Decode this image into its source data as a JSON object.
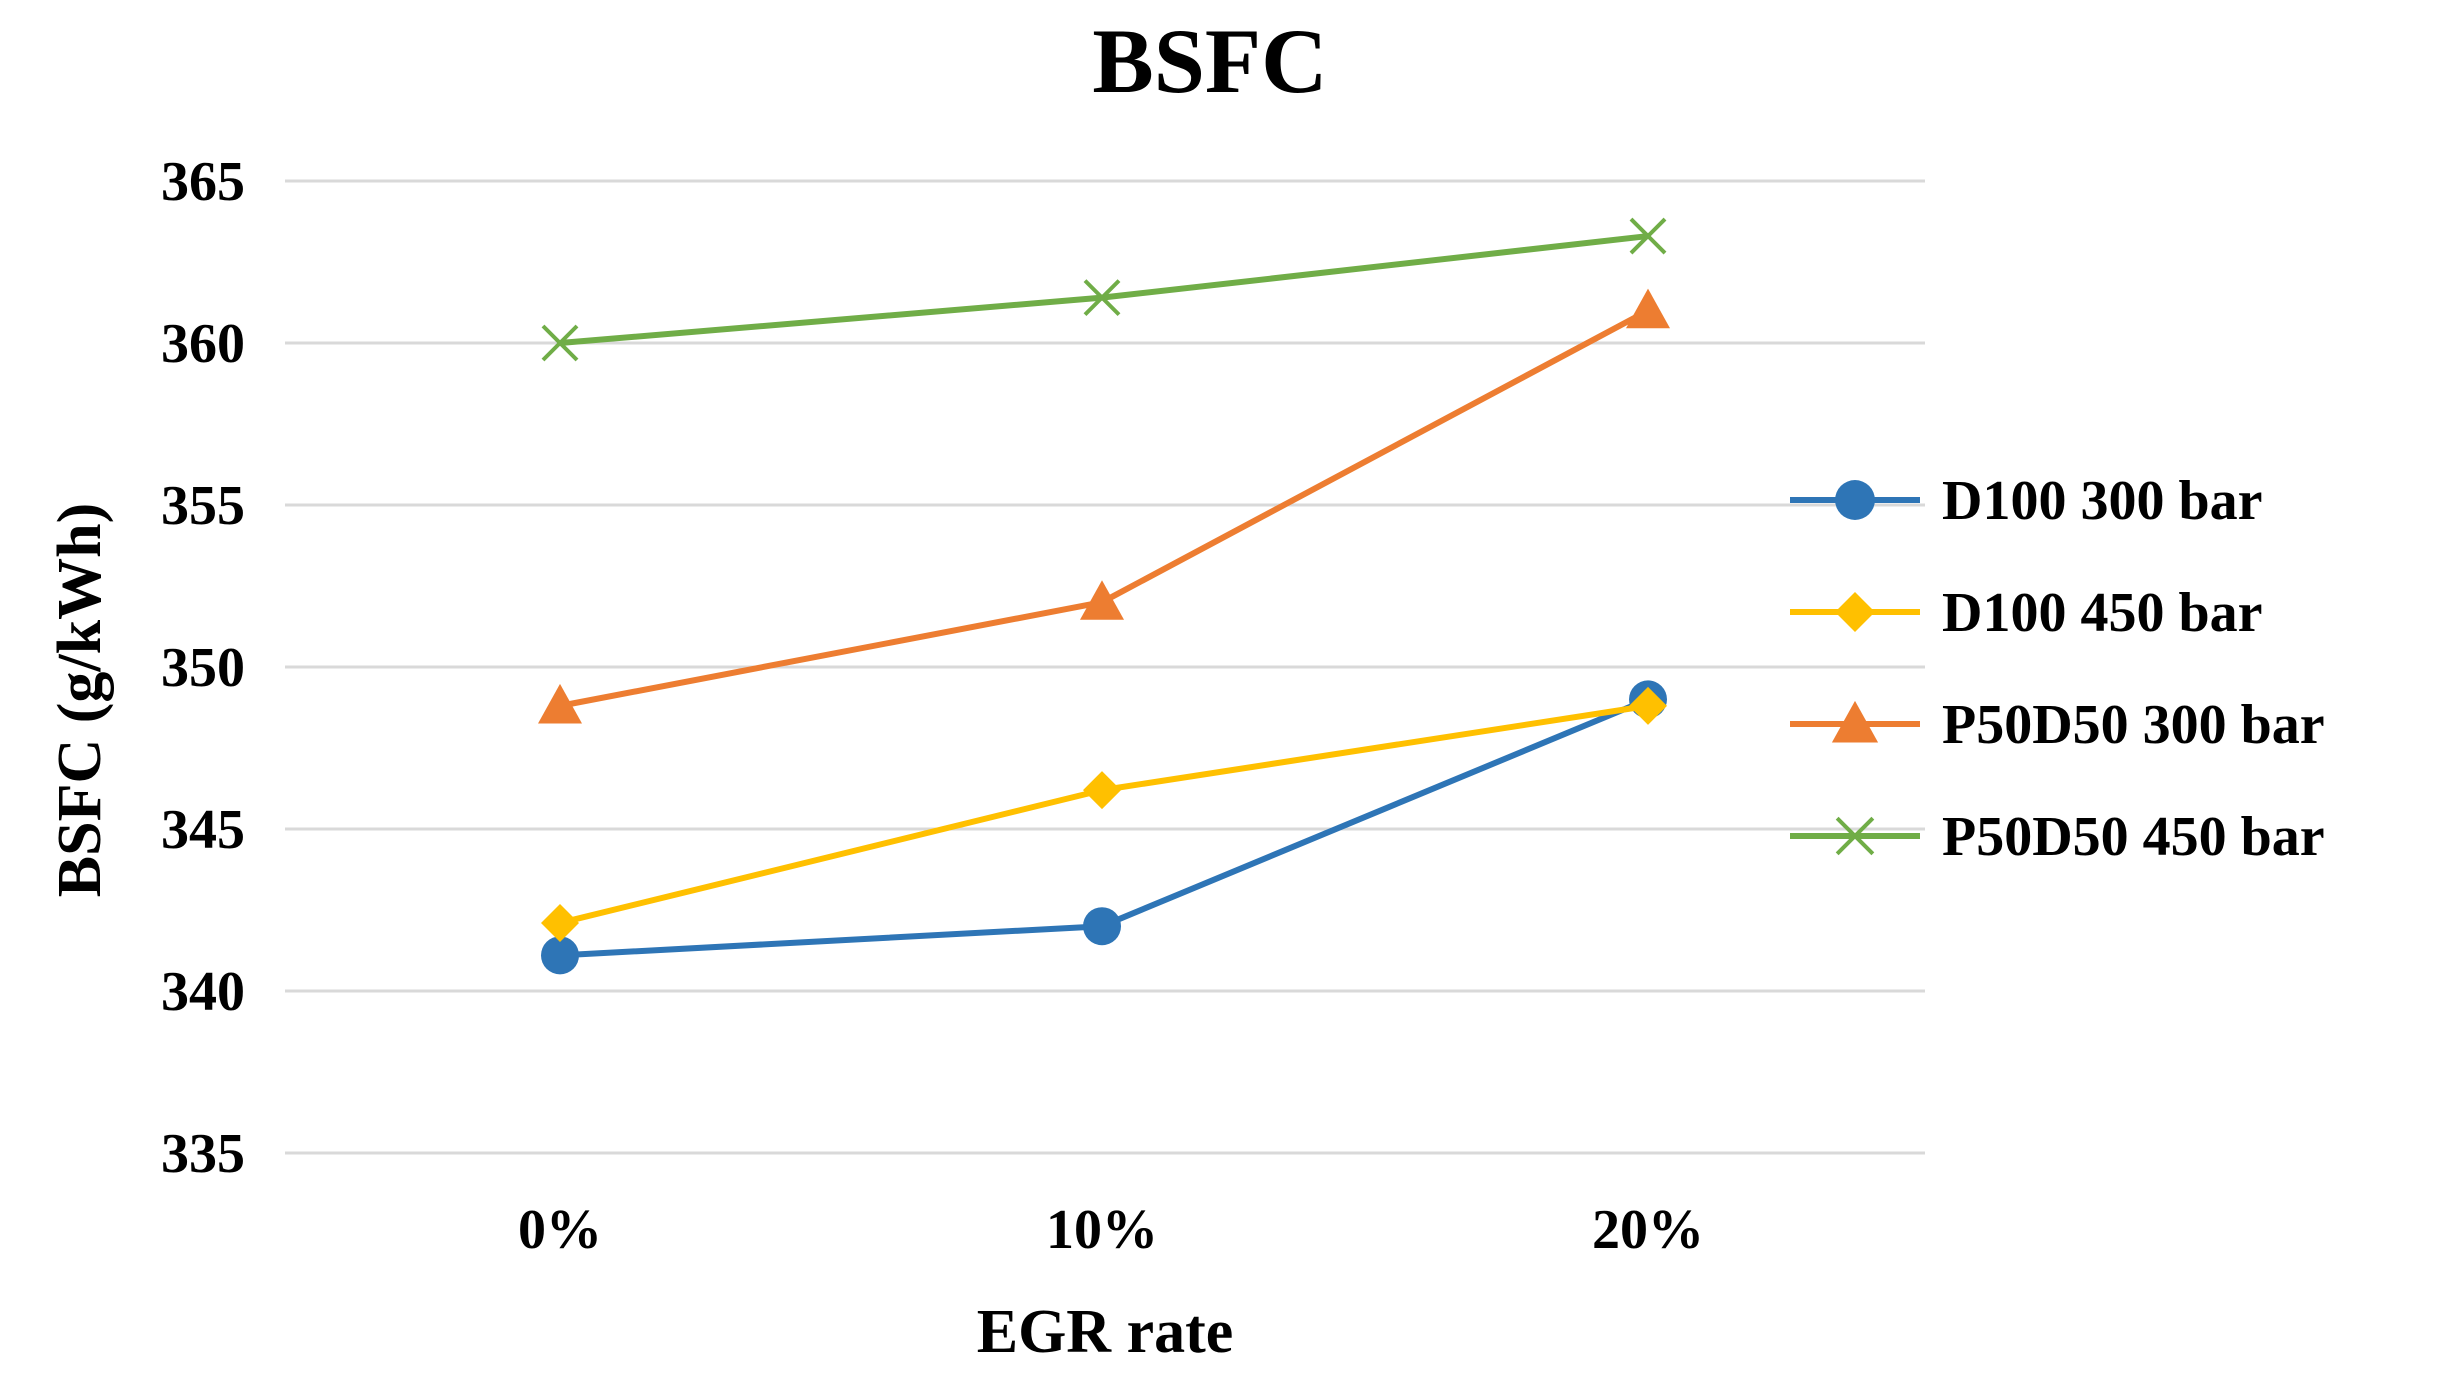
{
  "chart_data": {
    "type": "line",
    "title": "BSFC",
    "xlabel": "EGR rate",
    "ylabel": "BSFC (g/kWh)",
    "categories": [
      "0%",
      "10%",
      "20%"
    ],
    "ylim": [
      335,
      365
    ],
    "yticks": [
      335,
      340,
      345,
      350,
      355,
      360,
      365
    ],
    "grid": true,
    "legend_position": "right",
    "series": [
      {
        "name": "D100 300 bar",
        "values": [
          341.1,
          342.0,
          349.0
        ],
        "color": "#2e75b6",
        "marker": "circle"
      },
      {
        "name": "D100 450 bar",
        "values": [
          342.1,
          346.2,
          348.8
        ],
        "color": "#ffc000",
        "marker": "diamond"
      },
      {
        "name": "P50D50 300 bar",
        "values": [
          348.8,
          352.0,
          361.0
        ],
        "color": "#ed7d31",
        "marker": "triangle"
      },
      {
        "name": "P50D50 450 bar",
        "values": [
          360.0,
          361.4,
          363.3
        ],
        "color": "#70ad47",
        "marker": "x"
      }
    ]
  }
}
